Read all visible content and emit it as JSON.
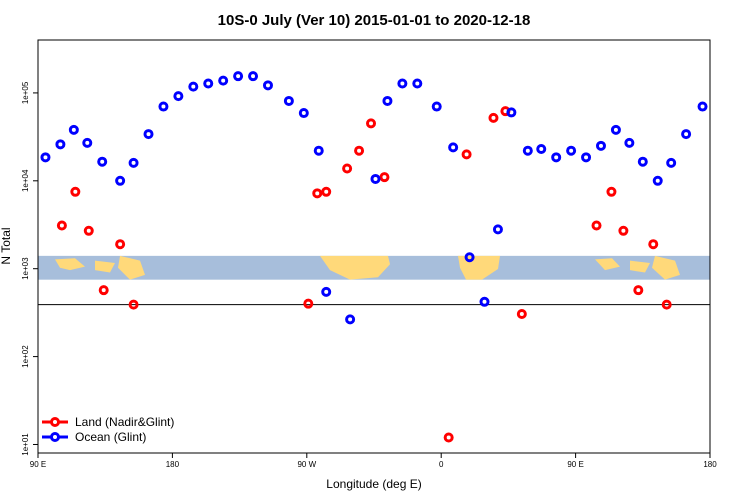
{
  "chart_data": {
    "type": "scatter",
    "title": "10S-0 July (Ver 10)   2015-01-01 to 2020-12-18",
    "xlabel": "Longitude (deg E)",
    "ylabel": "N Total",
    "x_scale_note": "wrapped longitude axis from 90E eastward through 180 to 180",
    "xlim": [
      90,
      540
    ],
    "ylim": [
      8,
      400000
    ],
    "y_scale": "log",
    "x_ticks": [
      {
        "value": 90,
        "label": "90 E"
      },
      {
        "value": 180,
        "label": "180"
      },
      {
        "value": 270,
        "label": "90 W"
      },
      {
        "value": 360,
        "label": "0"
      },
      {
        "value": 450,
        "label": "90 E"
      },
      {
        "value": 540,
        "label": "180"
      }
    ],
    "y_ticks": [
      {
        "value": 10,
        "label": "1e+01"
      },
      {
        "value": 100,
        "label": "1e+02"
      },
      {
        "value": 1000,
        "label": "1e+03"
      },
      {
        "value": 10000,
        "label": "1e+04"
      },
      {
        "value": 100000,
        "label": "1e+05"
      }
    ],
    "hline": 390,
    "series": [
      {
        "name": "Land (Nadir&Glint)",
        "color": "#ff0000",
        "points": [
          [
            106,
            3100
          ],
          [
            115,
            7500
          ],
          [
            124,
            2700
          ],
          [
            134,
            570
          ],
          [
            145,
            1900
          ],
          [
            154,
            390
          ],
          [
            271,
            400
          ],
          [
            277,
            7200
          ],
          [
            283,
            7500
          ],
          [
            297,
            13800
          ],
          [
            305,
            22000
          ],
          [
            313,
            45000
          ],
          [
            322,
            11000
          ],
          [
            365,
            12
          ],
          [
            377,
            20000
          ],
          [
            395,
            52000
          ],
          [
            403,
            62000
          ],
          [
            414,
            305
          ],
          [
            464,
            3100
          ],
          [
            474,
            7500
          ],
          [
            482,
            2700
          ],
          [
            492,
            570
          ],
          [
            502,
            1900
          ],
          [
            511,
            390
          ]
        ]
      },
      {
        "name": "Ocean (Glint)",
        "color": "#0000ff",
        "points": [
          [
            95,
            18500
          ],
          [
            105,
            26000
          ],
          [
            114,
            38000
          ],
          [
            123,
            27000
          ],
          [
            133,
            16500
          ],
          [
            145,
            10000
          ],
          [
            154,
            16000
          ],
          [
            164,
            34000
          ],
          [
            174,
            70000
          ],
          [
            184,
            92000
          ],
          [
            194,
            118000
          ],
          [
            204,
            128000
          ],
          [
            214,
            138000
          ],
          [
            224,
            155000
          ],
          [
            234,
            155000
          ],
          [
            244,
            122000
          ],
          [
            258,
            81000
          ],
          [
            268,
            59000
          ],
          [
            278,
            22000
          ],
          [
            283,
            545
          ],
          [
            299,
            265
          ],
          [
            316,
            10500
          ],
          [
            324,
            81000
          ],
          [
            334,
            128000
          ],
          [
            344,
            128000
          ],
          [
            357,
            70000
          ],
          [
            368,
            24000
          ],
          [
            379,
            1350
          ],
          [
            389,
            420
          ],
          [
            398,
            2800
          ],
          [
            407,
            60000
          ],
          [
            418,
            22000
          ],
          [
            427,
            23000
          ],
          [
            437,
            18500
          ],
          [
            447,
            22000
          ],
          [
            457,
            18500
          ],
          [
            467,
            25000
          ],
          [
            477,
            38000
          ],
          [
            486,
            27000
          ],
          [
            495,
            16500
          ],
          [
            505,
            10000
          ],
          [
            514,
            16000
          ],
          [
            524,
            34000
          ],
          [
            535,
            70000
          ]
        ]
      }
    ],
    "legend": {
      "position": "bottom-left",
      "entries": [
        "Land (Nadir&Glint)",
        "Ocean (Glint)"
      ]
    },
    "grid": false,
    "background_map_band": {
      "y_range": [
        750,
        1400
      ],
      "ocean_color": "#a7bedb",
      "land_color": "#ffd97a"
    }
  }
}
